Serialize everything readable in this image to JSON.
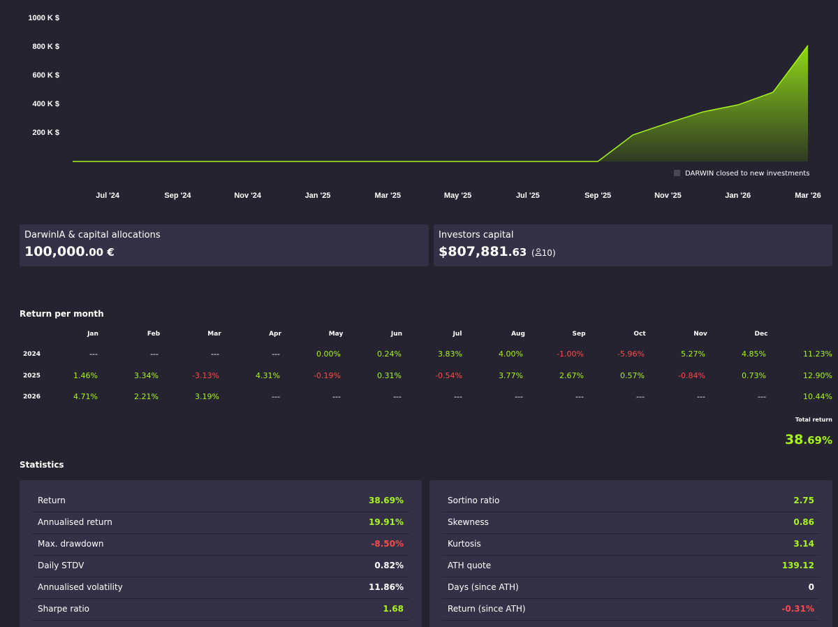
{
  "chart_data": {
    "type": "area",
    "x": [
      "2024-06",
      "2024-07",
      "2024-08",
      "2024-09",
      "2024-10",
      "2024-11",
      "2024-12",
      "2025-01",
      "2025-02",
      "2025-03",
      "2025-04",
      "2025-05",
      "2025-06",
      "2025-07",
      "2025-08",
      "2025-09",
      "2025-10",
      "2025-11",
      "2025-12",
      "2026-01",
      "2026-02",
      "2026-03"
    ],
    "values": [
      0,
      0,
      0,
      0,
      0,
      0,
      0,
      0,
      0,
      0,
      0,
      0,
      0,
      0,
      0,
      0,
      185000,
      268000,
      346000,
      395000,
      483000,
      810000
    ],
    "color": "#a8f51c",
    "xlim": [
      "2024-06",
      "2026-03"
    ],
    "xticks": [
      {
        "value": "2024-07",
        "label": "Jul '24"
      },
      {
        "value": "2024-09",
        "label": "Sep '24"
      },
      {
        "value": "2024-11",
        "label": "Nov '24"
      },
      {
        "value": "2025-01",
        "label": "Jan '25"
      },
      {
        "value": "2025-03",
        "label": "Mar '25"
      },
      {
        "value": "2025-05",
        "label": "May '25"
      },
      {
        "value": "2025-07",
        "label": "Jul '25"
      },
      {
        "value": "2025-09",
        "label": "Sep '25"
      },
      {
        "value": "2025-11",
        "label": "Nov '25"
      },
      {
        "value": "2026-01",
        "label": "Jan '26"
      },
      {
        "value": "2026-03",
        "label": "Mar '26"
      }
    ],
    "ylim": [
      0,
      1000000
    ],
    "yticks": [
      {
        "value": 200000,
        "label": "200 K $"
      },
      {
        "value": 400000,
        "label": "400 K $"
      },
      {
        "value": 600000,
        "label": "600 K $"
      },
      {
        "value": 800000,
        "label": "800 K $"
      },
      {
        "value": 1000000,
        "label": "1000 K $"
      }
    ],
    "legend_note": "DARWIN closed to new investments"
  },
  "cards": [
    {
      "title": "DarwinIA & capital allocations",
      "whole": "100,000",
      "fraction": ".00 €"
    },
    {
      "title": "Investors capital",
      "whole": "$807,881",
      "fraction": ".63",
      "paren_open": "(",
      "investors": "10",
      "paren_close": ")"
    }
  ],
  "monthly": {
    "title": "Return per month",
    "months": [
      "Jan",
      "Feb",
      "Mar",
      "Apr",
      "May",
      "Jun",
      "Jul",
      "Aug",
      "Sep",
      "Oct",
      "Nov",
      "Dec"
    ],
    "rows": [
      {
        "year": "2024",
        "values": [
          "---",
          "---",
          "---",
          "---",
          "0.00%",
          "0.24%",
          "3.83%",
          "4.00%",
          "-1.00%",
          "-5.96%",
          "5.27%",
          "4.85%"
        ],
        "total": "11.23%"
      },
      {
        "year": "2025",
        "values": [
          "1.46%",
          "3.34%",
          "-3.13%",
          "4.31%",
          "-0.19%",
          "0.31%",
          "-0.54%",
          "3.77%",
          "2.67%",
          "0.57%",
          "-0.84%",
          "0.73%"
        ],
        "total": "12.90%"
      },
      {
        "year": "2026",
        "values": [
          "4.71%",
          "2.21%",
          "3.19%",
          "---",
          "---",
          "---",
          "---",
          "---",
          "---",
          "---",
          "---",
          "---"
        ],
        "total": "10.44%"
      }
    ],
    "total_label": "Total return",
    "total_whole": "38",
    "total_fraction": ".69%"
  },
  "statistics": {
    "title": "Statistics",
    "panels": [
      [
        {
          "label": "Return",
          "value": "38.69%",
          "color": "#a8f51c"
        },
        {
          "label": "Annualised return",
          "value": "19.91%",
          "color": "#a8f51c"
        },
        {
          "label": "Max. drawdown",
          "value": "-8.50%",
          "color": "#ff4a4a"
        },
        {
          "label": "Daily STDV",
          "value": "0.82%",
          "color": "#ffffff"
        },
        {
          "label": "Annualised volatility",
          "value": "11.86%",
          "color": "#ffffff"
        },
        {
          "label": "Sharpe ratio",
          "value": "1.68",
          "color": "#a8f51c"
        }
      ],
      [
        {
          "label": "Sortino ratio",
          "value": "2.75",
          "color": "#a8f51c"
        },
        {
          "label": "Skewness",
          "value": "0.86",
          "color": "#a8f51c"
        },
        {
          "label": "Kurtosis",
          "value": "3.14",
          "color": "#a8f51c"
        },
        {
          "label": "ATH quote",
          "value": "139.12",
          "color": "#a8f51c"
        },
        {
          "label": "Days (since ATH)",
          "value": "0",
          "color": "#ffffff"
        },
        {
          "label": "Return (since ATH)",
          "value": "-0.31%",
          "color": "#ff4a4a"
        }
      ]
    ]
  }
}
